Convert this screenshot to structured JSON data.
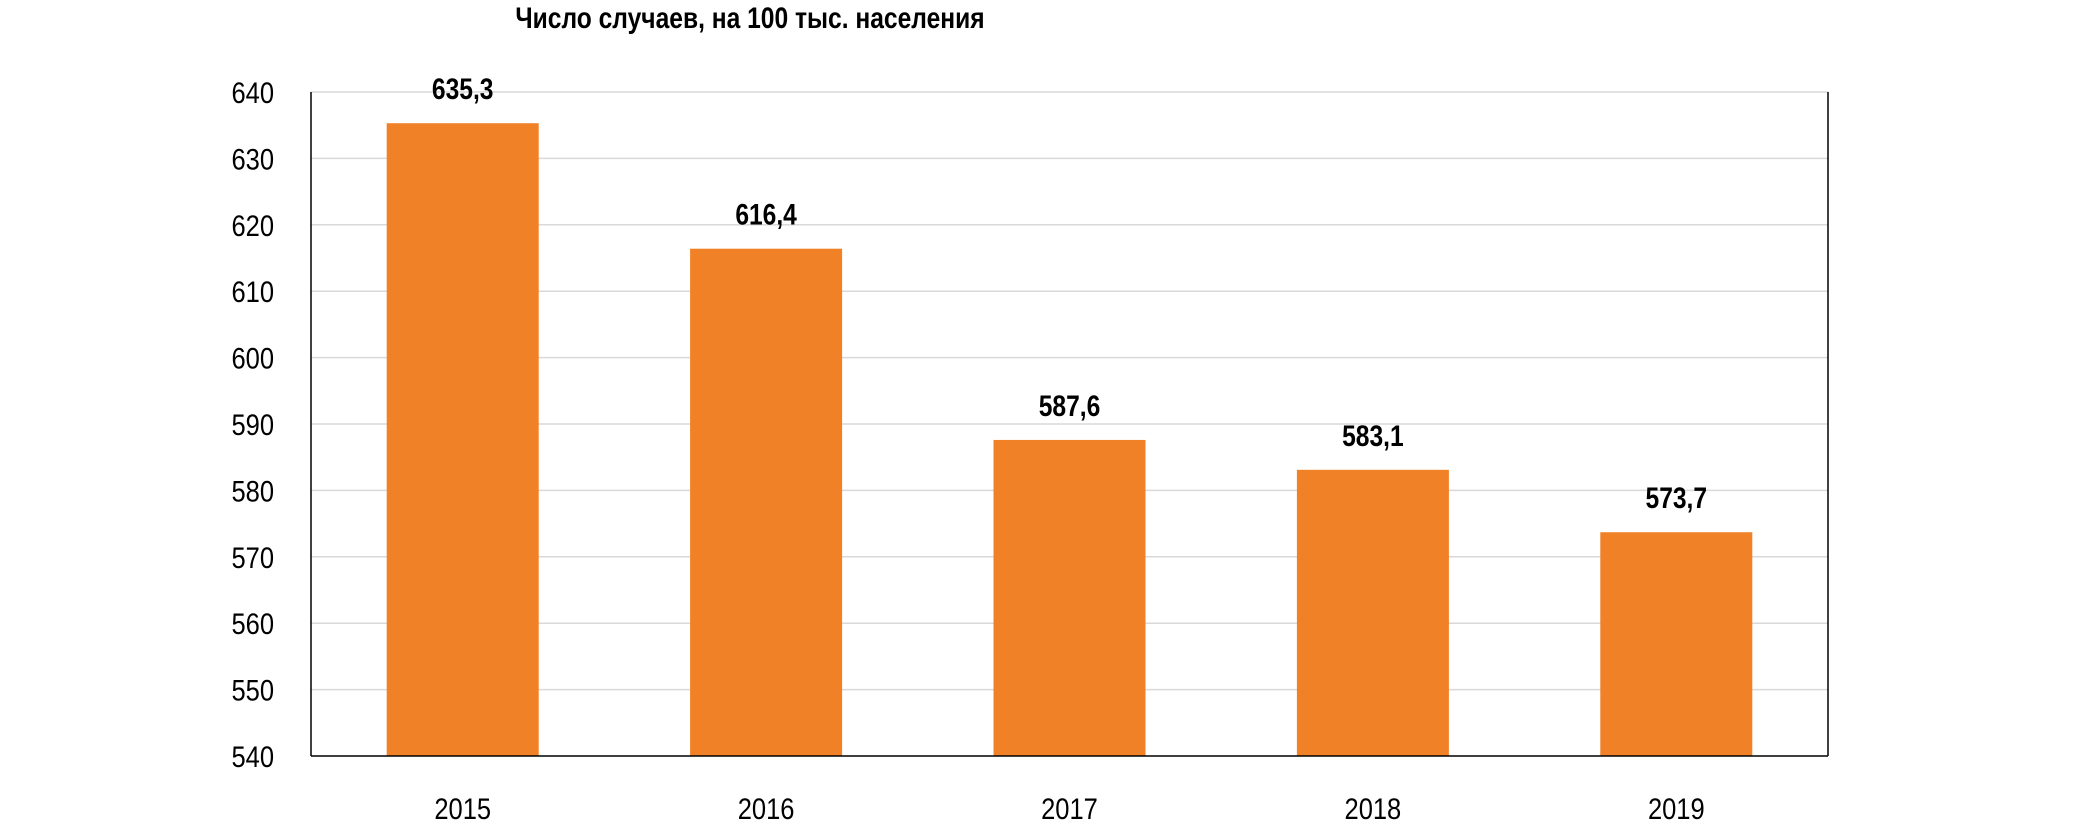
{
  "chart_data": {
    "type": "bar",
    "title": "Число случаев, на 100 тыс. населения",
    "xlabel": "",
    "ylabel": "",
    "categories": [
      "2015",
      "2016",
      "2017",
      "2018",
      "2019"
    ],
    "values": [
      635.3,
      616.4,
      587.6,
      583.1,
      573.7
    ],
    "value_labels": [
      "635,3",
      "616,4",
      "587,6",
      "583,1",
      "573,7"
    ],
    "ylim": [
      540,
      640
    ],
    "yticks": [
      "540",
      "550",
      "560",
      "570",
      "580",
      "590",
      "600",
      "610",
      "620",
      "630",
      "640"
    ],
    "grid": true,
    "legend": "none",
    "bar_color": "#F08127",
    "grid_color": "#D9D9D9",
    "axis_color": "#000000"
  }
}
